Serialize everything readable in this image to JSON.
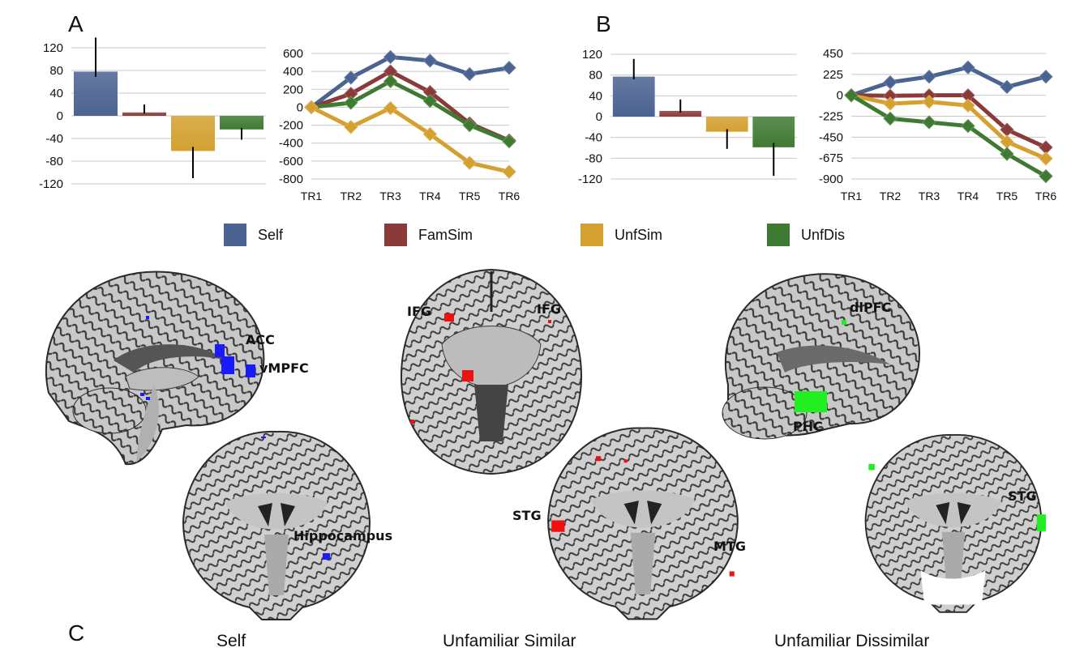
{
  "panel_labels": {
    "a": "A",
    "b": "B",
    "c": "C"
  },
  "legend": [
    {
      "label": "Self",
      "color": "#4a6390"
    },
    {
      "label": "FamSim",
      "color": "#8b3a3a"
    },
    {
      "label": "UnfSim",
      "color": "#d4a030"
    },
    {
      "label": "UnfDis",
      "color": "#3f7a32"
    }
  ],
  "chart_data": [
    {
      "type": "bar",
      "panel": "A",
      "categories": [
        "Self",
        "FamSim",
        "UnfSim",
        "UnfDis"
      ],
      "values": [
        78,
        6,
        -62,
        -24
      ],
      "error": [
        60,
        14,
        48,
        18
      ],
      "ylim": [
        -120,
        120
      ],
      "yticks": [
        "120",
        "80",
        "40",
        "0",
        "-40",
        "-80",
        "-120"
      ],
      "ytick_values": [
        120,
        80,
        40,
        0,
        -40,
        -80,
        -120
      ]
    },
    {
      "type": "line",
      "panel": "A",
      "x": [
        "TR1",
        "TR2",
        "TR3",
        "TR4",
        "TR5",
        "TR6"
      ],
      "series": [
        {
          "name": "Self",
          "values": [
            0,
            330,
            560,
            520,
            370,
            440
          ]
        },
        {
          "name": "FamSim",
          "values": [
            0,
            150,
            400,
            170,
            -180,
            -370
          ]
        },
        {
          "name": "UnfDis",
          "values": [
            0,
            50,
            290,
            70,
            -200,
            -380
          ]
        },
        {
          "name": "UnfSim",
          "values": [
            0,
            -220,
            -10,
            -300,
            -620,
            -720
          ]
        }
      ],
      "ylim": [
        -800,
        600
      ],
      "yticks": [
        "600",
        "400",
        "200",
        "0",
        "-200",
        "-400",
        "-600",
        "-800"
      ],
      "ytick_values": [
        600,
        400,
        200,
        0,
        -200,
        -400,
        -600,
        -800
      ]
    },
    {
      "type": "bar",
      "panel": "B",
      "categories": [
        "Self",
        "FamSim",
        "UnfSim",
        "UnfDis"
      ],
      "values": [
        77,
        11,
        -29,
        -59
      ],
      "error": [
        34,
        22,
        33,
        55
      ],
      "ylim": [
        -120,
        120
      ],
      "yticks": [
        "120",
        "80",
        "40",
        "0",
        "-40",
        "-80",
        "-120"
      ],
      "ytick_values": [
        120,
        80,
        40,
        0,
        -40,
        -80,
        -120
      ]
    },
    {
      "type": "line",
      "panel": "B",
      "x": [
        "TR1",
        "TR2",
        "TR3",
        "TR4",
        "TR5",
        "TR6"
      ],
      "series": [
        {
          "name": "Self",
          "values": [
            0,
            140,
            200,
            300,
            90,
            200
          ]
        },
        {
          "name": "FamSim",
          "values": [
            0,
            -5,
            0,
            0,
            -370,
            -560
          ]
        },
        {
          "name": "UnfSim",
          "values": [
            0,
            -90,
            -70,
            -110,
            -500,
            -680
          ]
        },
        {
          "name": "UnfDis",
          "values": [
            0,
            -250,
            -290,
            -330,
            -630,
            -870
          ]
        }
      ],
      "ylim": [
        -900,
        450
      ],
      "yticks": [
        "450",
        "225",
        "0",
        "-225",
        "-450",
        "-675",
        "-900"
      ],
      "ytick_values": [
        450,
        225,
        0,
        -225,
        -450,
        -675,
        -900
      ]
    }
  ],
  "brain_labels": {
    "acc": "ACC",
    "vmpfc": "vMPFC",
    "hippocampus": "Hippocampus",
    "ifg_left": "IFG",
    "ifg_right": "IFG",
    "stg_mid": "STG",
    "mtg": "MTG",
    "dlpfc": "dlPFC",
    "phc": "PHC",
    "stg_right": "STG"
  },
  "captions": {
    "self": "Self",
    "unfamiliar_similar": "Unfamiliar Similar",
    "unfamiliar_dissimilar": "Unfamiliar Dissimilar"
  },
  "activation_colors": {
    "self": "#1a1aff",
    "similar": "#ee1111",
    "dissimilar": "#22ee22"
  }
}
